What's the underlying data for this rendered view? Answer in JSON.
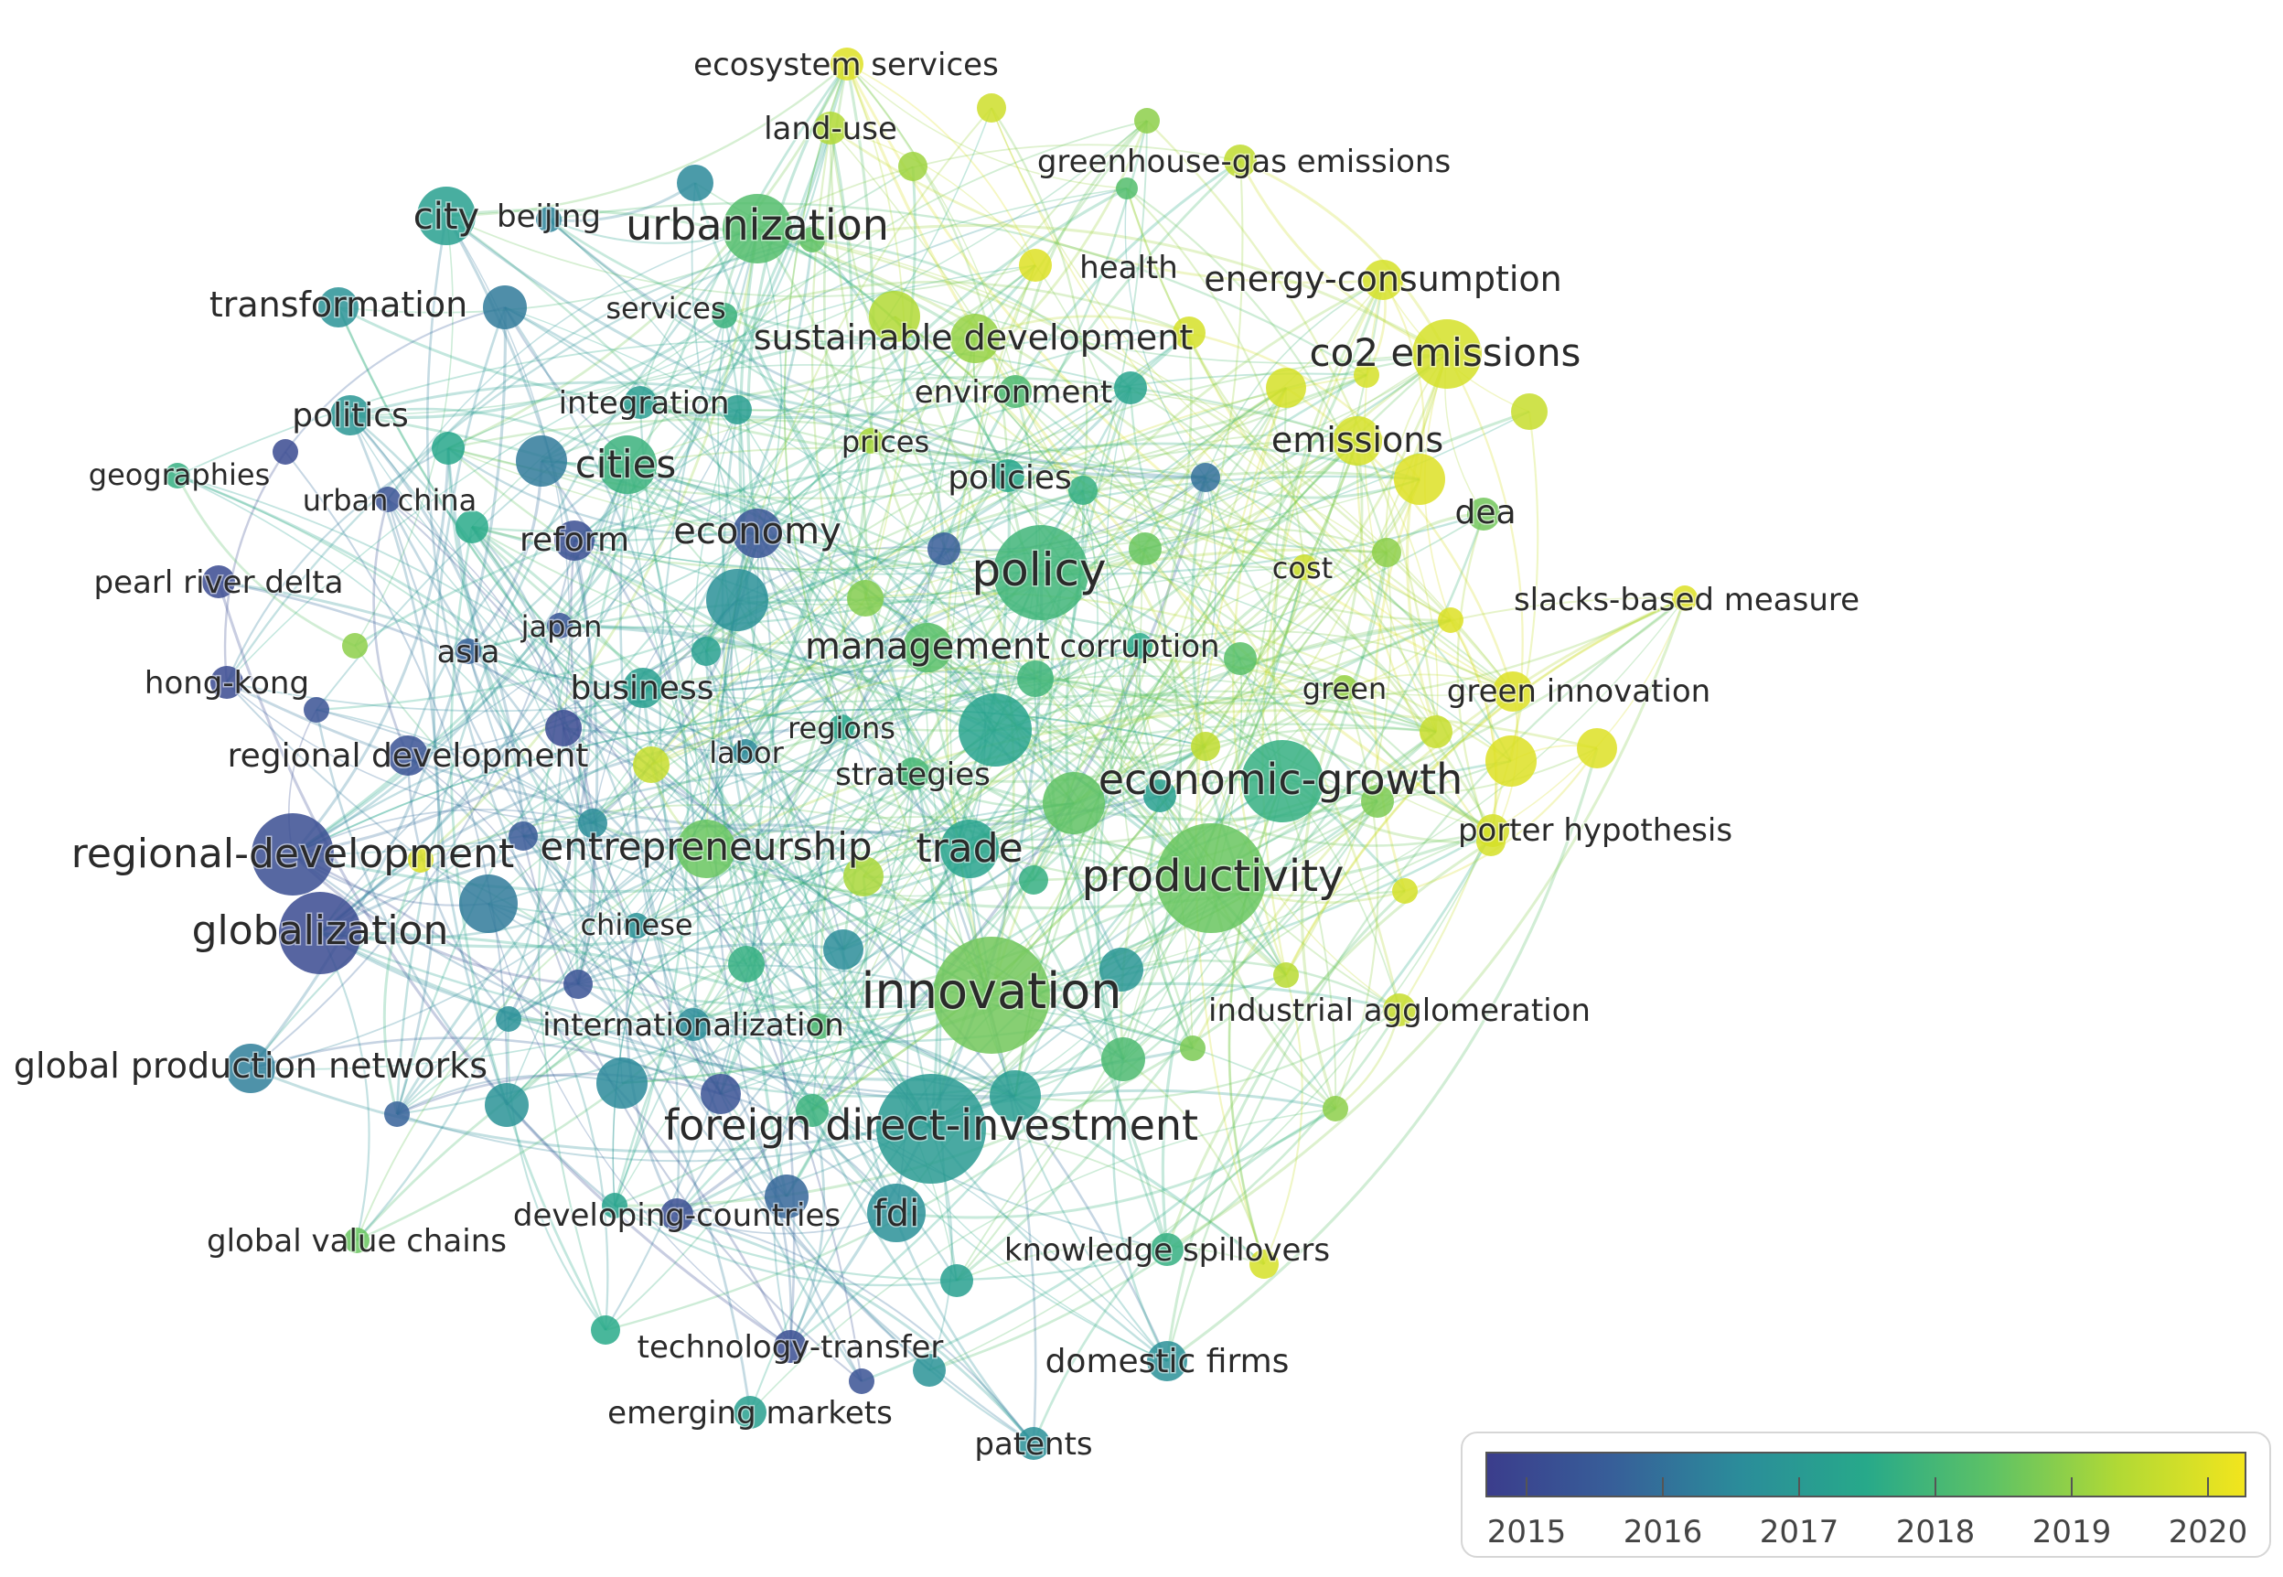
{
  "legend": {
    "gradient": [
      "#3b3d8c",
      "#375f99",
      "#2b8c9a",
      "#27a98a",
      "#5ec265",
      "#b1d935",
      "#f2e51d"
    ],
    "ticks": [
      "2015",
      "2016",
      "2017",
      "2018",
      "2019",
      "2020"
    ]
  },
  "nodes": [
    {
      "id": "n1",
      "label": "ecosystem services",
      "year": 2020.0,
      "size": 2,
      "fs": 34
    },
    {
      "id": "n2",
      "label": "land-use",
      "year": 2019.4,
      "size": 2,
      "fs": 34
    },
    {
      "id": "n3",
      "label": "greenhouse-gas emissions",
      "year": 2019.6,
      "size": 2,
      "fs": 34
    },
    {
      "id": "n4",
      "label": "city",
      "year": 2017.3,
      "size": 5,
      "fs": 40
    },
    {
      "id": "n5",
      "label": "beijing",
      "year": 2016.5,
      "size": 1,
      "fs": 34
    },
    {
      "id": "n6",
      "label": "urbanization",
      "year": 2018.3,
      "size": 6,
      "fs": 46
    },
    {
      "id": "n7",
      "label": "health",
      "year": 2020.0,
      "size": 2,
      "fs": 34
    },
    {
      "id": "n8",
      "label": "energy-consumption",
      "year": 2019.9,
      "size": 3,
      "fs": 38
    },
    {
      "id": "n9",
      "label": "transformation",
      "year": 2016.9,
      "size": 3,
      "fs": 38
    },
    {
      "id": "n10",
      "label": "services",
      "year": 2017.9,
      "size": 1,
      "fs": 32
    },
    {
      "id": "n11",
      "label": "sustainable development",
      "year": 2019.1,
      "size": 4,
      "fs": 38
    },
    {
      "id": "n12",
      "label": "co2 emissions",
      "year": 2019.9,
      "size": 6,
      "fs": 42
    },
    {
      "id": "n13",
      "label": "integration",
      "year": 2017.2,
      "size": 2,
      "fs": 34
    },
    {
      "id": "n14",
      "label": "environment",
      "year": 2018.2,
      "size": 2,
      "fs": 34
    },
    {
      "id": "n15",
      "label": "politics",
      "year": 2017.0,
      "size": 3,
      "fs": 36
    },
    {
      "id": "n16",
      "label": "prices",
      "year": 2019.3,
      "size": 1,
      "fs": 32
    },
    {
      "id": "n17",
      "label": "emissions",
      "year": 2019.9,
      "size": 4,
      "fs": 38
    },
    {
      "id": "n18",
      "label": "geographies",
      "year": 2017.8,
      "size": 1,
      "fs": 32
    },
    {
      "id": "n19",
      "label": "cities",
      "year": 2017.9,
      "size": 5,
      "fs": 42
    },
    {
      "id": "n20",
      "label": "policies",
      "year": 2017.5,
      "size": 2,
      "fs": 36
    },
    {
      "id": "n21",
      "label": "urban china",
      "year": 2015.4,
      "size": 1,
      "fs": 32
    },
    {
      "id": "n22",
      "label": "dea",
      "year": 2018.7,
      "size": 2,
      "fs": 36
    },
    {
      "id": "n23",
      "label": "reform",
      "year": 2015.3,
      "size": 3,
      "fs": 36
    },
    {
      "id": "n24",
      "label": "economy",
      "year": 2015.5,
      "size": 4,
      "fs": 40
    },
    {
      "id": "n25",
      "label": "cost",
      "year": 2019.8,
      "size": 1,
      "fs": 32
    },
    {
      "id": "n26",
      "label": "pearl river delta",
      "year": 2015.2,
      "size": 2,
      "fs": 34
    },
    {
      "id": "n27",
      "label": "policy",
      "year": 2018.0,
      "size": 8,
      "fs": 50
    },
    {
      "id": "n28",
      "label": "slacks-based measure",
      "year": 2020.0,
      "size": 1,
      "fs": 34
    },
    {
      "id": "n29",
      "label": "japan",
      "year": 2015.5,
      "size": 1,
      "fs": 32
    },
    {
      "id": "n30",
      "label": "asia",
      "year": 2015.8,
      "size": 1,
      "fs": 34
    },
    {
      "id": "n31",
      "label": "management",
      "year": 2018.4,
      "size": 4,
      "fs": 40
    },
    {
      "id": "n32",
      "label": "corruption",
      "year": 2017.6,
      "size": 1,
      "fs": 34
    },
    {
      "id": "n33",
      "label": "hong-kong",
      "year": 2015.2,
      "size": 2,
      "fs": 34
    },
    {
      "id": "n34",
      "label": "business",
      "year": 2017.3,
      "size": 3,
      "fs": 36
    },
    {
      "id": "n35",
      "label": "green",
      "year": 2019.1,
      "size": 1,
      "fs": 32
    },
    {
      "id": "n36",
      "label": "green innovation",
      "year": 2020.0,
      "size": 3,
      "fs": 34
    },
    {
      "id": "n37",
      "label": "regions",
      "year": 2017.5,
      "size": 1,
      "fs": 32
    },
    {
      "id": "n38",
      "label": "labor",
      "year": 2016.6,
      "size": 1,
      "fs": 32
    },
    {
      "id": "n39",
      "label": "regional development",
      "year": 2015.4,
      "size": 3,
      "fs": 36
    },
    {
      "id": "n40",
      "label": "strategies",
      "year": 2018.1,
      "size": 2,
      "fs": 34
    },
    {
      "id": "n41",
      "label": "economic-growth",
      "year": 2017.8,
      "size": 7,
      "fs": 46
    },
    {
      "id": "n42",
      "label": "porter hypothesis",
      "year": 2019.9,
      "size": 2,
      "fs": 34
    },
    {
      "id": "n43",
      "label": "regional-development",
      "year": 2015.3,
      "size": 7,
      "fs": 44
    },
    {
      "id": "n44",
      "label": "entrepreneurship",
      "year": 2018.6,
      "size": 5,
      "fs": 42
    },
    {
      "id": "n45",
      "label": "trade",
      "year": 2017.4,
      "size": 5,
      "fs": 44
    },
    {
      "id": "n46",
      "label": "productivity",
      "year": 2018.6,
      "size": 9,
      "fs": 48
    },
    {
      "id": "n47",
      "label": "globalization",
      "year": 2015.2,
      "size": 7,
      "fs": 44
    },
    {
      "id": "n48",
      "label": "chinese",
      "year": 2016.9,
      "size": 1,
      "fs": 32
    },
    {
      "id": "n49",
      "label": "innovation",
      "year": 2018.7,
      "size": 10,
      "fs": 54
    },
    {
      "id": "n50",
      "label": "industrial agglomeration",
      "year": 2019.7,
      "size": 2,
      "fs": 34
    },
    {
      "id": "n51",
      "label": "internationalization",
      "year": 2016.7,
      "size": 2,
      "fs": 34
    },
    {
      "id": "n52",
      "label": "global production networks",
      "year": 2016.4,
      "size": 4,
      "fs": 38
    },
    {
      "id": "n53",
      "label": "foreign direct-investment",
      "year": 2017.1,
      "size": 9,
      "fs": 46
    },
    {
      "id": "n54",
      "label": "fdi",
      "year": 2016.8,
      "size": 5,
      "fs": 40
    },
    {
      "id": "n55",
      "label": "developing-countries",
      "year": 2015.3,
      "size": 2,
      "fs": 34
    },
    {
      "id": "n56",
      "label": "global value chains",
      "year": 2018.6,
      "size": 1,
      "fs": 34
    },
    {
      "id": "n57",
      "label": "knowledge spillovers",
      "year": 2017.8,
      "size": 2,
      "fs": 34
    },
    {
      "id": "n58",
      "label": "technology-transfer",
      "year": 2015.3,
      "size": 2,
      "fs": 34
    },
    {
      "id": "n59",
      "label": "domestic firms",
      "year": 2016.8,
      "size": 3,
      "fs": 36
    },
    {
      "id": "n60",
      "label": "emerging markets",
      "year": 2017.3,
      "size": 2,
      "fs": 34
    },
    {
      "id": "n61",
      "label": "patents",
      "year": 2016.8,
      "size": 2,
      "fs": 34
    }
  ]
}
